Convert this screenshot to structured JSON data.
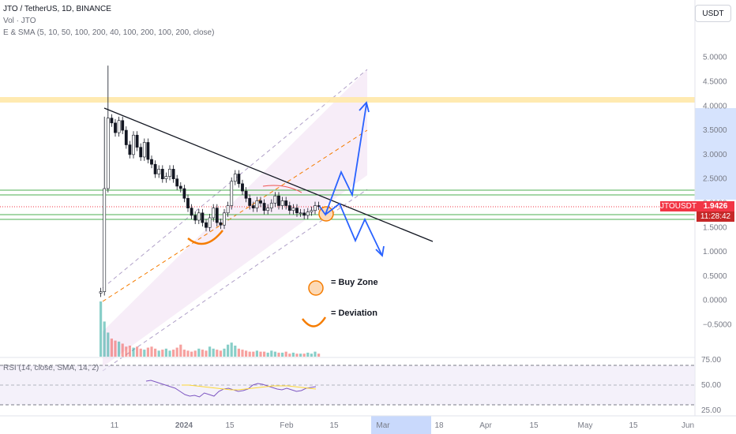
{
  "header": {
    "symbol_line": "JTO / TetherUS, 1D, BINANCE",
    "vol_line": "Vol · JTO",
    "ma_line": "E & SMA (5, 10, 50, 100, 200, 40, 100, 200, 100, 200, close)",
    "currency_button": "USDT"
  },
  "price_axis": {
    "ticks": [
      "5.0000",
      "4.5000",
      "4.0000",
      "3.5000",
      "3.0000",
      "2.5000",
      "2.0000",
      "1.5000",
      "1.0000",
      "0.5000",
      "0.0000",
      "−0.5000"
    ],
    "current_symbol": "JTOUSDT",
    "current_price": "1.9426",
    "countdown": "11:28:42"
  },
  "rsi": {
    "label": "RSI (14, close, SMA, 14, 2)",
    "ticks": [
      "75.00",
      "50.00",
      "25.00"
    ]
  },
  "time_axis": {
    "ticks": [
      "11",
      "2024",
      "15",
      "Feb",
      "15",
      "Mar",
      "18",
      "Apr",
      "15",
      "May",
      "15",
      "Jun"
    ]
  },
  "annotations": {
    "buy_zone": "= Buy Zone",
    "deviation": "= Deviation"
  },
  "colors": {
    "up": "#26a69a",
    "down": "#ef5350",
    "candle_body": "#ffffff",
    "candle_border": "#131722",
    "resistance": "#ffe8a8",
    "support": "#4caf50",
    "channel_fill": "#f3e5f5",
    "projection": "#2962ff",
    "buy_zone": "#f57c00",
    "rsi_line": "#7e57c2",
    "rsi_ma": "#fdd835",
    "current_badge": "#f23645"
  },
  "chart_data": {
    "type": "candlestick",
    "y_range": [
      -0.8,
      5.4
    ],
    "closes": [
      0.18,
      2.3,
      3.75,
      3.65,
      3.45,
      3.7,
      3.5,
      3.2,
      3.0,
      3.4,
      3.15,
      2.95,
      3.25,
      2.9,
      2.8,
      2.6,
      2.7,
      2.5,
      2.55,
      2.7,
      2.5,
      2.35,
      2.3,
      2.1,
      1.9,
      1.75,
      1.65,
      1.8,
      1.6,
      1.5,
      1.7,
      1.9,
      1.6,
      1.55,
      1.8,
      1.95,
      2.45,
      2.6,
      2.4,
      2.25,
      2.1,
      1.95,
      1.9,
      2.05,
      2.0,
      1.85,
      1.9,
      2.0,
      2.15,
      1.95,
      2.05,
      1.95,
      1.85,
      1.9,
      1.8,
      1.8,
      1.75,
      1.82,
      1.85,
      1.95,
      1.94
    ],
    "volume": [
      5.5,
      3.5,
      2.4,
      1.8,
      1.6,
      1.5,
      1.3,
      1.0,
      1.1,
      0.9,
      1.0,
      0.8,
      0.7,
      0.9,
      1.0,
      0.8,
      0.6,
      0.7,
      0.8,
      0.6,
      0.7,
      0.9,
      1.2,
      0.7,
      0.6,
      0.5,
      0.6,
      0.8,
      0.7,
      0.6,
      1.0,
      0.8,
      0.7,
      0.6,
      0.8,
      1.2,
      1.4,
      1.1,
      0.8,
      0.7,
      0.6,
      0.5,
      0.5,
      0.6,
      0.5,
      0.5,
      0.4,
      0.6,
      0.5,
      0.4,
      0.4,
      0.5,
      0.3,
      0.4,
      0.3,
      0.3,
      0.3,
      0.4,
      0.3,
      0.5,
      0.3
    ],
    "rsi": [
      55,
      56,
      54,
      52,
      50,
      48,
      46,
      42,
      38,
      36,
      37,
      35,
      40,
      38,
      36,
      42,
      45,
      46,
      44,
      42,
      43,
      45,
      50,
      52,
      51,
      49,
      47,
      45,
      44,
      46,
      44,
      42,
      43,
      46,
      47,
      48
    ],
    "rsi_ma": [
      50,
      50,
      49,
      48,
      47,
      46,
      45,
      44,
      44,
      45,
      46,
      47,
      48,
      49,
      49,
      49,
      48,
      47,
      46,
      45
    ],
    "levels": {
      "resistance": 3.95,
      "support_upper": [
        2.45,
        2.38
      ],
      "support_lower": [
        1.75,
        1.68
      ],
      "current": 1.94
    }
  }
}
